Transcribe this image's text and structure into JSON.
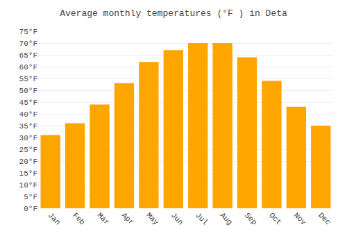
{
  "chart_data": {
    "type": "bar",
    "title": "Average monthly temperatures (°F ) in Deta",
    "categories": [
      "Jan",
      "Feb",
      "Mar",
      "Apr",
      "May",
      "Jun",
      "Jul",
      "Aug",
      "Sep",
      "Oct",
      "Nov",
      "Dec"
    ],
    "values": [
      31,
      36,
      44,
      53,
      62,
      67,
      70,
      70,
      64,
      54,
      43,
      35
    ],
    "color": "#FFA500",
    "ylim": [
      0,
      75
    ],
    "yticks": [
      {
        "value": 0,
        "label": "0°F"
      },
      {
        "value": 5,
        "label": "5°F"
      },
      {
        "value": 10,
        "label": "10°F"
      },
      {
        "value": 15,
        "label": "15°F"
      },
      {
        "value": 20,
        "label": "20°F"
      },
      {
        "value": 25,
        "label": "25°F"
      },
      {
        "value": 30,
        "label": "30°F"
      },
      {
        "value": 35,
        "label": "35°F"
      },
      {
        "value": 40,
        "label": "40°F"
      },
      {
        "value": 45,
        "label": "45°F"
      },
      {
        "value": 50,
        "label": "50°F"
      },
      {
        "value": 55,
        "label": "55°F"
      },
      {
        "value": 60,
        "label": "60°F"
      },
      {
        "value": 65,
        "label": "65°F"
      },
      {
        "value": 70,
        "label": "70°F"
      },
      {
        "value": 75,
        "label": "75°F"
      }
    ],
    "grid": true
  }
}
